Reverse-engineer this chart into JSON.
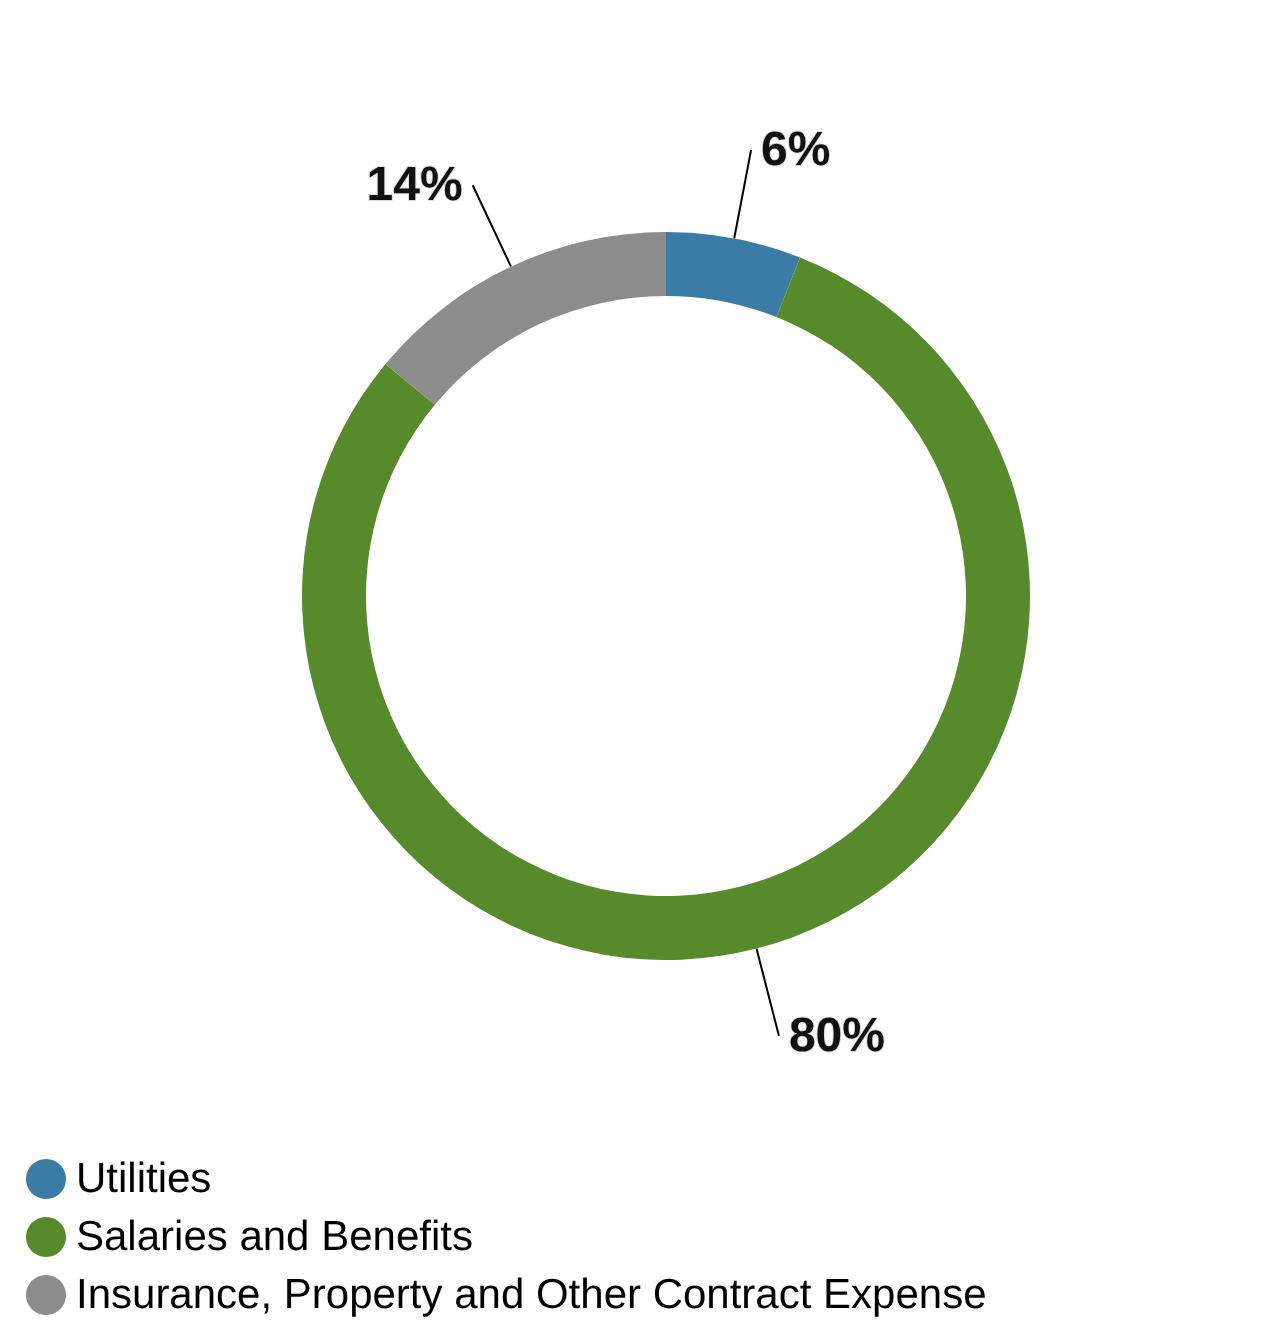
{
  "chart_data": {
    "type": "donut",
    "categories": [
      "Utilities",
      "Salaries and Benefits",
      "Insurance, Property and Other Contract Expense"
    ],
    "values": [
      6,
      80,
      14
    ],
    "colors": [
      "#3a7ca5",
      "#578a2a",
      "#8c8c8c"
    ],
    "value_labels": [
      "6%",
      "80%",
      "14%"
    ],
    "legend": "bottom left"
  }
}
